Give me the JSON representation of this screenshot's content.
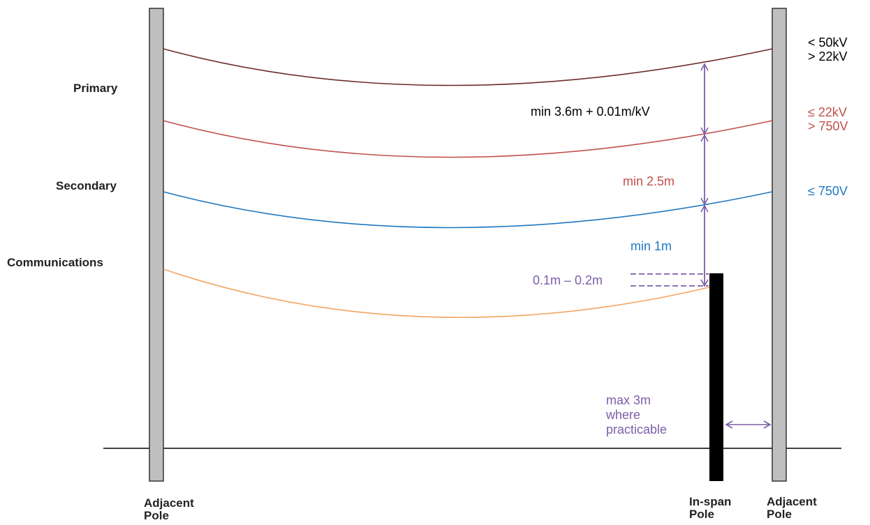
{
  "levels": {
    "primary": "Primary",
    "secondary": "Secondary",
    "communications": "Communications"
  },
  "voltages": {
    "top": [
      "< 50kV",
      "> 22kV"
    ],
    "mid": [
      "≤ 22kV",
      "> 750V"
    ],
    "low": "≤  750V"
  },
  "clearances": {
    "primary": "min 3.6m + 0.01m/kV",
    "secondary": "min 2.5m",
    "communications": "min 1m",
    "inspan_gap": "0.1m – 0.2m",
    "pole_distance": [
      "max 3m",
      "where",
      "practicable"
    ]
  },
  "poles": {
    "left": [
      "Adjacent",
      "Pole"
    ],
    "inspan": [
      "In-span",
      "Pole"
    ],
    "right": [
      "Adjacent",
      "Pole"
    ]
  },
  "colors": {
    "primary_line": "#6b2a26",
    "secondary_hv_line": "#c0504d",
    "secondary_lv_line": "#1f78c1",
    "comms_line": "#f4a460",
    "dimension": "#7b5ea7",
    "adjacent_pole": "#bfbfbf",
    "inspan_pole": "#000000"
  }
}
